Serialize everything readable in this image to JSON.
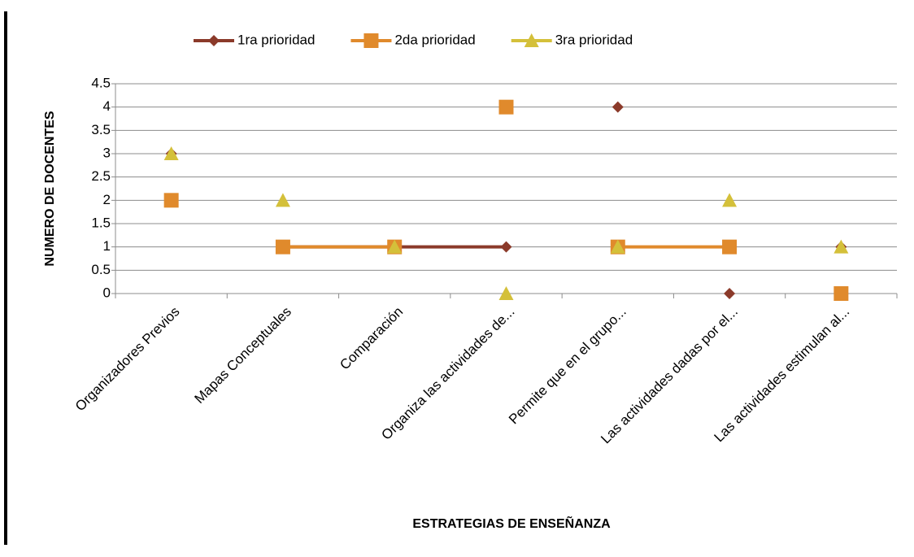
{
  "chart_data": {
    "type": "line",
    "x_label": "ESTRATEGIAS DE ENSEÑANZA",
    "y_label": "NUMERO DE DOCENTES",
    "categories": [
      "Organizadores Previos",
      "Mapas Conceptuales",
      "Comparación",
      "Organiza las actividades de...",
      "Permite que en el grupo...",
      "Las actividades dadas por el...",
      "Las actividades estimulan al..."
    ],
    "series": [
      {
        "name": "1ra prioridad",
        "color": "#8b3a2a",
        "marker": "diamond",
        "values": [
          3,
          1,
          1,
          1,
          4,
          0,
          1
        ]
      },
      {
        "name": "2da prioridad",
        "color": "#e08a2c",
        "marker": "square",
        "values": [
          2,
          1,
          1,
          4,
          1,
          1,
          0
        ]
      },
      {
        "name": "3ra prioridad",
        "color": "#d4c03a",
        "marker": "triangle",
        "values": [
          3,
          2,
          1,
          0,
          1,
          2,
          1
        ]
      }
    ],
    "ylim": [
      0,
      4.5
    ],
    "yticks": [
      0,
      0.5,
      1,
      1.5,
      2,
      2.5,
      3,
      3.5,
      4,
      4.5
    ],
    "grid": true,
    "legend": "top"
  }
}
